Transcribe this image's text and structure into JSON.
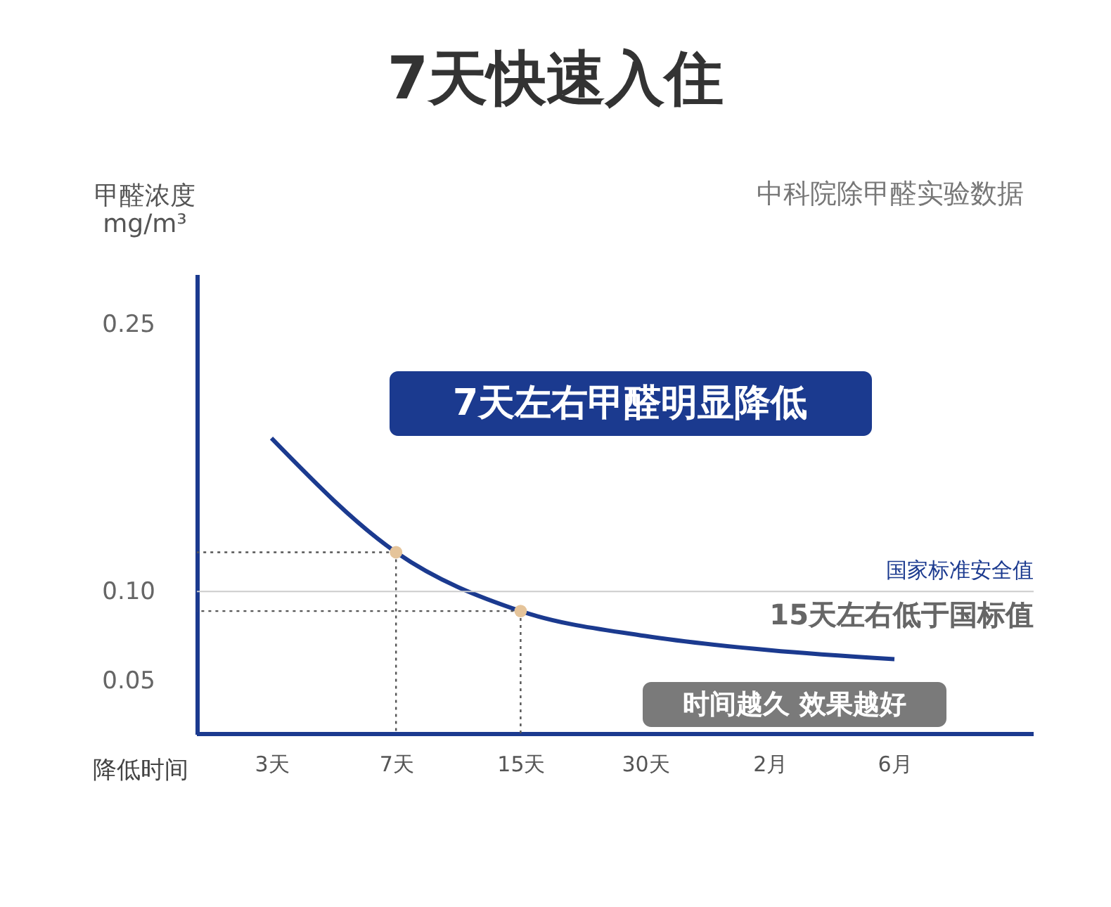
{
  "chart_data": {
    "type": "line",
    "title": "7天快速入住",
    "subtitle": "中科院除甲醛实验数据",
    "ylabel": "甲醛浓度\nmg/m³",
    "xlabel": "降低时间",
    "categories": [
      "3天",
      "7天",
      "15天",
      "30天",
      "2月",
      "6月"
    ],
    "series": [
      {
        "color": "#1b3a8f",
        "values": [
          0.186,
          0.122,
          0.089,
          0.075,
          0.067,
          0.062
        ],
        "marker": "none",
        "line_style": "solid"
      },
      {
        "type": "scatter",
        "x": [
          "7天",
          "15天"
        ],
        "values": [
          0.122,
          0.089
        ],
        "color": "#e5c49a"
      }
    ],
    "ylim": [
      0.02,
      0.278
    ],
    "yticks": [
      0.05,
      {
        "value": 0.1,
        "label": "0.10"
      },
      0.25
    ],
    "ref_lines": [
      {
        "axis": "y",
        "value": 0.1,
        "label": "国家标准安全值",
        "color": "#cccccc"
      }
    ],
    "annotations": [
      "7天左右甲醛明显降低",
      "15天左右低于国标值",
      "时间越久 效果越好"
    ],
    "grid": false
  }
}
